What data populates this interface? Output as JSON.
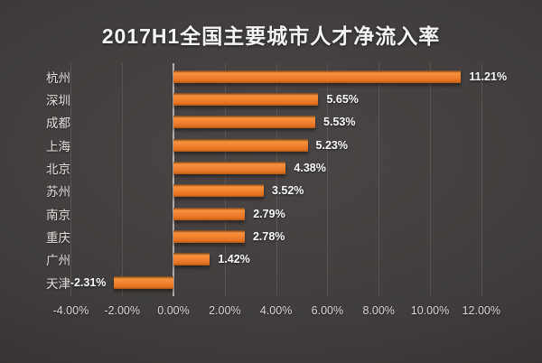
{
  "title": "2017H1全国主要城市人才净流入率",
  "chart_data": {
    "type": "bar",
    "orientation": "horizontal",
    "title": "2017H1全国主要城市人才净流入率",
    "categories": [
      "杭州",
      "深圳",
      "成都",
      "上海",
      "北京",
      "苏州",
      "南京",
      "重庆",
      "广州",
      "天津"
    ],
    "values": [
      11.21,
      5.65,
      5.53,
      5.23,
      4.38,
      3.52,
      2.79,
      2.78,
      1.42,
      -2.31
    ],
    "value_labels": [
      "11.21%",
      "5.65%",
      "5.53%",
      "5.23%",
      "4.38%",
      "3.52%",
      "2.79%",
      "2.78%",
      "1.42%",
      "-2.31%"
    ],
    "x_ticks": [
      "-4.00%",
      "-2.00%",
      "0.00%",
      "2.00%",
      "4.00%",
      "6.00%",
      "8.00%",
      "10.00%",
      "12.00%"
    ],
    "x_tick_values": [
      -4,
      -2,
      0,
      2,
      4,
      6,
      8,
      10,
      12
    ],
    "xlim": [
      -4,
      12
    ],
    "unit": "%",
    "grid": true,
    "legend": false,
    "bar_color": "#ee7b28",
    "background_color": "#3c3938",
    "text_color": "#f2f0ee"
  }
}
